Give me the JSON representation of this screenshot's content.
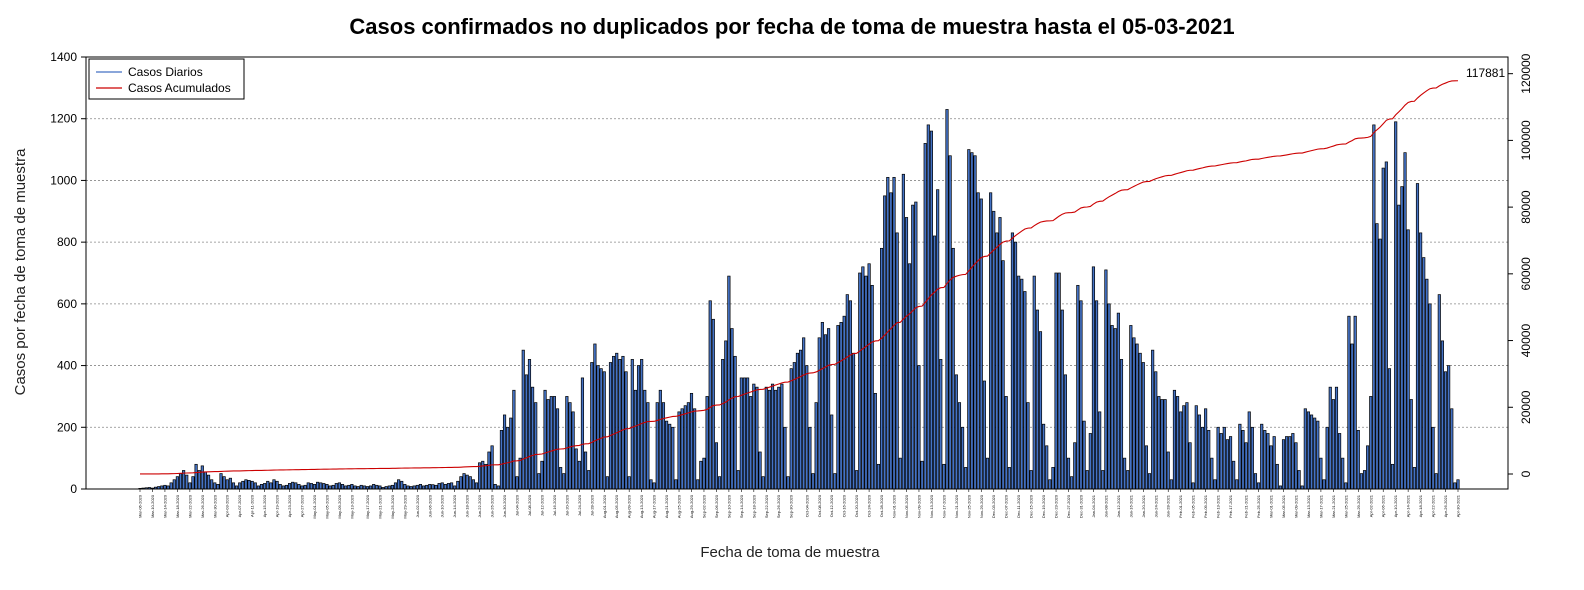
{
  "chart_data": {
    "type": "bar",
    "title": "Casos confirmados no duplicados por fecha de toma de muestra hasta el 05-03-2021",
    "xlabel": "Fecha de toma de muestra",
    "ylabel": "Casos por fecha de toma de muestra",
    "ylim": [
      0,
      1400
    ],
    "yticks": [
      0,
      200,
      400,
      600,
      800,
      1000,
      1200,
      1400
    ],
    "y2lim": [
      -4500,
      125000
    ],
    "y2ticks": [
      0,
      20000,
      40000,
      60000,
      80000,
      100000,
      120000
    ],
    "grid": "horizontal dotted",
    "legend_position": "top-left",
    "final_cumulative_label": "117881",
    "x_tick_labels": [
      "Mar-06-2020",
      "Mar-10-2020",
      "Mar-14-2020",
      "Mar-18-2020",
      "Mar-22-2020",
      "Mar-26-2020",
      "Mar-30-2020",
      "Apr-03-2020",
      "Apr-07-2020",
      "Apr-11-2020",
      "Apr-15-2020",
      "Apr-19-2020",
      "Apr-23-2020",
      "Apr-27-2020",
      "May-01-2020",
      "May-05-2020",
      "May-09-2020",
      "May-13-2020",
      "May-17-2020",
      "May-21-2020",
      "May-25-2020",
      "May-29-2020",
      "Jun-02-2020",
      "Jun-06-2020",
      "Jun-10-2020",
      "Jun-14-2020",
      "Jun-18-2020",
      "Jun-22-2020",
      "Jun-26-2020",
      "Jun-30-2020",
      "Jul-04-2020",
      "Jul-08-2020",
      "Jul-12-2020",
      "Jul-16-2020",
      "Jul-20-2020",
      "Jul-24-2020",
      "Jul-28-2020",
      "Aug-01-2020",
      "Aug-05-2020",
      "Aug-09-2020",
      "Aug-13-2020",
      "Aug-17-2020",
      "Aug-21-2020",
      "Aug-25-2020",
      "Aug-29-2020",
      "Sep-02-2020",
      "Sep-06-2020",
      "Sep-10-2020",
      "Sep-14-2020",
      "Sep-18-2020",
      "Sep-22-2020",
      "Sep-26-2020",
      "Sep-30-2020",
      "Oct-04-2020",
      "Oct-08-2020",
      "Oct-12-2020",
      "Oct-16-2020",
      "Oct-20-2020",
      "Oct-24-2020",
      "Oct-28-2020",
      "Nov-01-2020",
      "Nov-05-2020",
      "Nov-09-2020",
      "Nov-13-2020",
      "Nov-17-2020",
      "Nov-21-2020",
      "Nov-25-2020",
      "Nov-29-2020",
      "Dec-03-2020",
      "Dec-07-2020",
      "Dec-11-2020",
      "Dec-15-2020",
      "Dec-19-2020",
      "Dec-23-2020",
      "Dec-27-2020",
      "Dec-31-2020",
      "Jan-04-2021",
      "Jan-08-2021",
      "Jan-12-2021",
      "Jan-16-2021",
      "Jan-20-2021",
      "Jan-24-2021",
      "Jan-28-2021",
      "Feb-01-2021",
      "Feb-05-2021",
      "Feb-09-2021",
      "Feb-13-2021",
      "Feb-17-2021",
      "Feb-21-2021",
      "Feb-25-2021",
      "Mar-01-2021",
      "Mar-05-2021",
      "Mar-09-2021",
      "Mar-13-2021",
      "Mar-17-2021",
      "Mar-21-2021",
      "Mar-25-2021",
      "Mar-29-2021",
      "Apr-02-2021",
      "Apr-06-2021",
      "Apr-10-2021",
      "Apr-14-2021",
      "Apr-18-2021",
      "Apr-22-2021",
      "Apr-26-2021",
      "Apr-30-2021"
    ],
    "series": [
      {
        "name": "Casos Diarios",
        "type": "bar",
        "color": "#4472c4",
        "values": [
          2,
          3,
          4,
          5,
          3,
          6,
          8,
          10,
          12,
          10,
          20,
          30,
          40,
          50,
          60,
          45,
          20,
          40,
          80,
          60,
          75,
          55,
          45,
          30,
          20,
          15,
          50,
          40,
          30,
          35,
          20,
          10,
          20,
          25,
          30,
          28,
          25,
          20,
          10,
          15,
          18,
          25,
          20,
          30,
          25,
          15,
          10,
          12,
          18,
          22,
          20,
          15,
          10,
          12,
          20,
          18,
          15,
          22,
          20,
          18,
          15,
          10,
          12,
          18,
          20,
          15,
          10,
          12,
          15,
          10,
          8,
          12,
          10,
          8,
          10,
          15,
          12,
          10,
          5,
          8,
          10,
          12,
          20,
          30,
          25,
          15,
          10,
          8,
          10,
          12,
          15,
          10,
          12,
          15,
          14,
          12,
          18,
          20,
          15,
          18,
          20,
          10,
          25,
          40,
          50,
          45,
          40,
          30,
          20,
          85,
          90,
          80,
          120,
          140,
          15,
          10,
          190,
          240,
          200,
          230,
          320,
          40,
          100,
          450,
          370,
          420,
          330,
          280,
          50,
          90,
          320,
          290,
          300,
          300,
          260,
          70,
          50,
          300,
          280,
          250,
          130,
          90,
          360,
          120,
          60,
          410,
          470,
          400,
          390,
          380,
          40,
          410,
          430,
          440,
          420,
          430,
          380,
          40,
          420,
          320,
          400,
          420,
          320,
          280,
          30,
          20,
          280,
          320,
          280,
          220,
          210,
          200,
          30,
          250,
          260,
          270,
          280,
          310,
          260,
          30,
          90,
          100,
          300,
          610,
          550,
          150,
          40,
          420,
          480,
          690,
          520,
          430,
          60,
          360,
          360,
          360,
          300,
          340,
          330,
          120,
          40,
          330,
          320,
          340,
          320,
          330,
          340,
          200,
          40,
          390,
          410,
          440,
          450,
          490,
          400,
          200,
          50,
          280,
          490,
          540,
          500,
          520,
          240,
          50,
          530,
          540,
          560,
          630,
          610,
          440,
          60,
          700,
          720,
          690,
          730,
          660,
          310,
          80,
          780,
          950,
          1010,
          960,
          1010,
          830,
          100,
          1020,
          880,
          730,
          920,
          930,
          400,
          90,
          1120,
          1180,
          1160,
          820,
          970,
          420,
          80,
          1230,
          1080,
          780,
          370,
          280,
          200,
          70,
          1100,
          1090,
          1080,
          960,
          940,
          350,
          100,
          960,
          900,
          830,
          880,
          740,
          300,
          70,
          830,
          800,
          690,
          680,
          640,
          280,
          60,
          690,
          580,
          510,
          210,
          140,
          30,
          70,
          700,
          700,
          580,
          370,
          100,
          40,
          150,
          660,
          610,
          220,
          60,
          180,
          720,
          610,
          250,
          60,
          710,
          600,
          530,
          520,
          570,
          420,
          100,
          60,
          530,
          490,
          470,
          440,
          410,
          140,
          50,
          450,
          380,
          300,
          290,
          290,
          120,
          30,
          320,
          300,
          250,
          270,
          280,
          150,
          20,
          270,
          240,
          200,
          260,
          190,
          100,
          30,
          200,
          180,
          200,
          160,
          170,
          90,
          30,
          210,
          190,
          150,
          250,
          200,
          50,
          20,
          210,
          190,
          180,
          140,
          170,
          80,
          10,
          160,
          170,
          170,
          180,
          150,
          60,
          10,
          260,
          250,
          240,
          230,
          220,
          100,
          30,
          200,
          330,
          290,
          330,
          180,
          100,
          20,
          560,
          470,
          560,
          190,
          50,
          60,
          140,
          300,
          1180,
          860,
          810,
          1040,
          1060,
          390,
          80,
          1190,
          920,
          980,
          1090,
          840,
          290,
          70,
          990,
          830,
          750,
          680,
          600,
          200,
          50,
          630,
          480,
          380,
          400,
          260,
          20,
          30
        ]
      },
      {
        "name": "Casos Acumulados",
        "type": "line",
        "color": "#cc0000",
        "final_value": 117881
      }
    ]
  },
  "legend": {
    "items": [
      {
        "label": "Casos Diarios",
        "color": "#4472c4"
      },
      {
        "label": "Casos Acumulados",
        "color": "#cc0000"
      }
    ]
  }
}
